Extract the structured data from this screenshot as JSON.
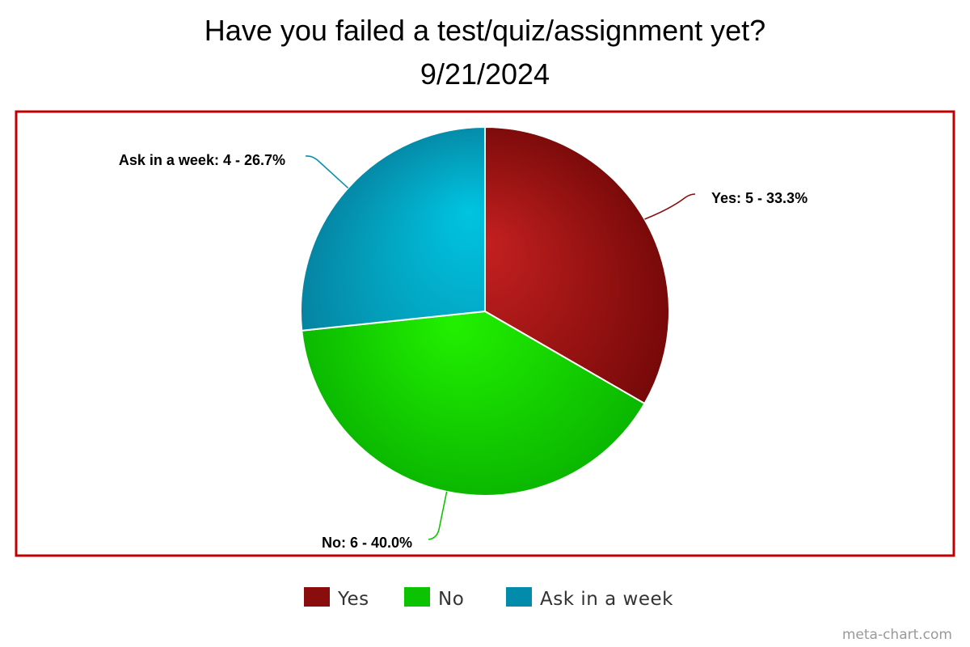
{
  "chart_data": {
    "type": "pie",
    "title": "Have you failed a test/quiz/assignment yet?",
    "subtitle": "9/21/2024",
    "slices": [
      {
        "name": "Yes",
        "value": 5,
        "label": "Yes: 5 - 33.3%",
        "color": "#a01414"
      },
      {
        "name": "No",
        "value": 6,
        "label": "No: 6 - 40.0%",
        "color": "#11d400"
      },
      {
        "name": "Ask in a week",
        "value": 4,
        "label": "Ask in a week: 4 - 26.7%",
        "color": "#0099bb"
      }
    ],
    "legend": {
      "placement": "bottom-center",
      "items": [
        "Yes",
        "No",
        "Ask in a week"
      ]
    }
  },
  "frame_color": "#c00000",
  "credit": "meta-chart.com"
}
